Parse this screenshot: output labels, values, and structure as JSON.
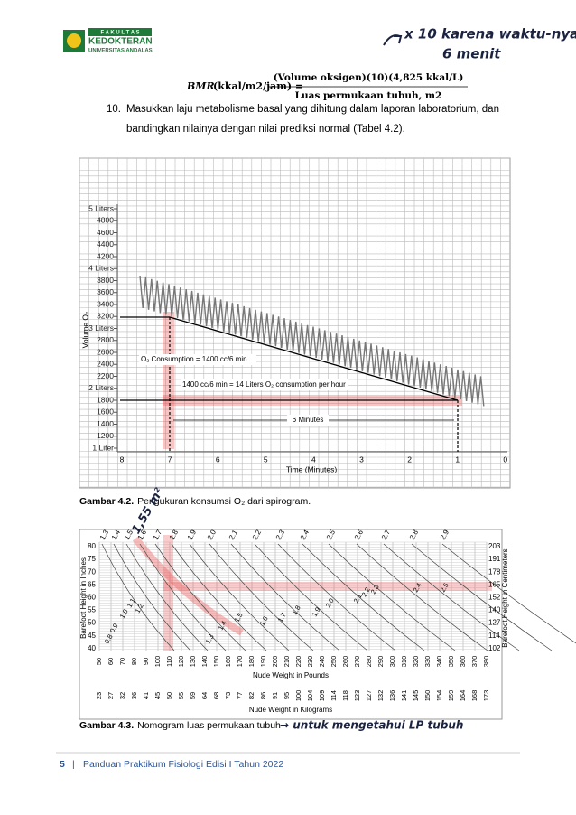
{
  "header": {
    "logo": {
      "line1": "F A K U L T A S",
      "line2": "KEDOKTERAN",
      "line3": "UNIVERSITAS ANDALAS"
    }
  },
  "handwriting": {
    "note_line1": "x 10 karena waktu-nya",
    "note_line2": "6 menit",
    "surface_area": "1,55 m²",
    "caption_note": "→ untuk mengetahui LP tubuh"
  },
  "formula": {
    "lhs_symbol": "BMR",
    "lhs_units": "(kkal/m2/jam) =",
    "numerator": "(Volume oksigen)(10)(4,825 kkal/L)",
    "denominator": "Luas permukaan tubuh, m2"
  },
  "item": {
    "number": "10.",
    "lines": [
      "Masukkan laju metabolisme basal yang dihitung dalam laporan laboratorium, dan",
      "bandingkan nilainya dengan nilai prediksi normal (Tabel 4.2)."
    ]
  },
  "figure_1": {
    "y_axis_label": "Volume O₂",
    "x_axis_label": "Time (Minutes)",
    "y_labels": [
      "5 Liters",
      4800,
      4600,
      4400,
      4200,
      "4 Liters",
      3800,
      3600,
      3400,
      3200,
      "3 Liters",
      2800,
      2600,
      2400,
      2200,
      "2 Liters",
      1800,
      1600,
      1400,
      1200,
      "1 Liter"
    ],
    "x_labels": [
      8,
      7,
      6,
      5,
      4,
      3,
      2,
      1,
      0
    ],
    "annotation_1": "O₂ Consumption = 1400 cc/6 min",
    "annotation_2": "1400 cc/6 min = 14 Liters O₂ consumption per hour",
    "annotation_3": "6 Minutes",
    "caption_label": "Gambar 4.2.",
    "caption_text": "Pengukuran konsumsi O₂ dari spirogram."
  },
  "figure_2": {
    "left_axis_label": "Barefoot Height in Inches",
    "right_axis_label": "Barefoot Height in Centimeters",
    "inches": [
      80,
      75,
      70,
      65,
      60,
      55,
      50,
      45,
      40
    ],
    "centimeters": [
      203,
      191,
      178,
      165,
      152,
      140,
      127,
      114,
      102
    ],
    "pounds": [
      50,
      60,
      70,
      80,
      90,
      100,
      110,
      120,
      130,
      140,
      150,
      160,
      170,
      180,
      190,
      200,
      210,
      220,
      230,
      240,
      250,
      260,
      270,
      280,
      290,
      300,
      310,
      320,
      330,
      340,
      350,
      360,
      370,
      380
    ],
    "kilograms": [
      23,
      27,
      32,
      36,
      41,
      45,
      50,
      55,
      59,
      64,
      68,
      73,
      77,
      82,
      86,
      91,
      95,
      100,
      104,
      109,
      114,
      118,
      123,
      127,
      132,
      136,
      141,
      145,
      150,
      154,
      159,
      164,
      168,
      173
    ],
    "pounds_label": "Nude Weight in Pounds",
    "kilograms_label": "Nude Weight in Kilograms",
    "top_curve_labels": [
      "1.3",
      "1.4",
      "1.5",
      "1.6",
      "1.7",
      "1.8",
      "1.9",
      "2.0",
      "2.1",
      "2.2",
      "2.3",
      "2.4",
      "2.5",
      "2.6",
      "2.7",
      "2.8",
      "2.9"
    ],
    "lower_curve_labels": [
      "0.8",
      "0.9",
      "1.0",
      "1.1",
      "1.2",
      "1.3",
      "1.4",
      "1.5",
      "1.6",
      "1.7",
      "1.8",
      "1.9",
      "2.0",
      "2.1",
      "2.2",
      "2.3",
      "2.4",
      "2.5"
    ],
    "caption_label": "Gambar 4.3.",
    "caption_text": "Nomogram luas permukaan tubuh"
  },
  "footer": {
    "page": "5",
    "separator": "|",
    "text": "Panduan Praktikum Fisiologi Edisi I Tahun 2022"
  }
}
